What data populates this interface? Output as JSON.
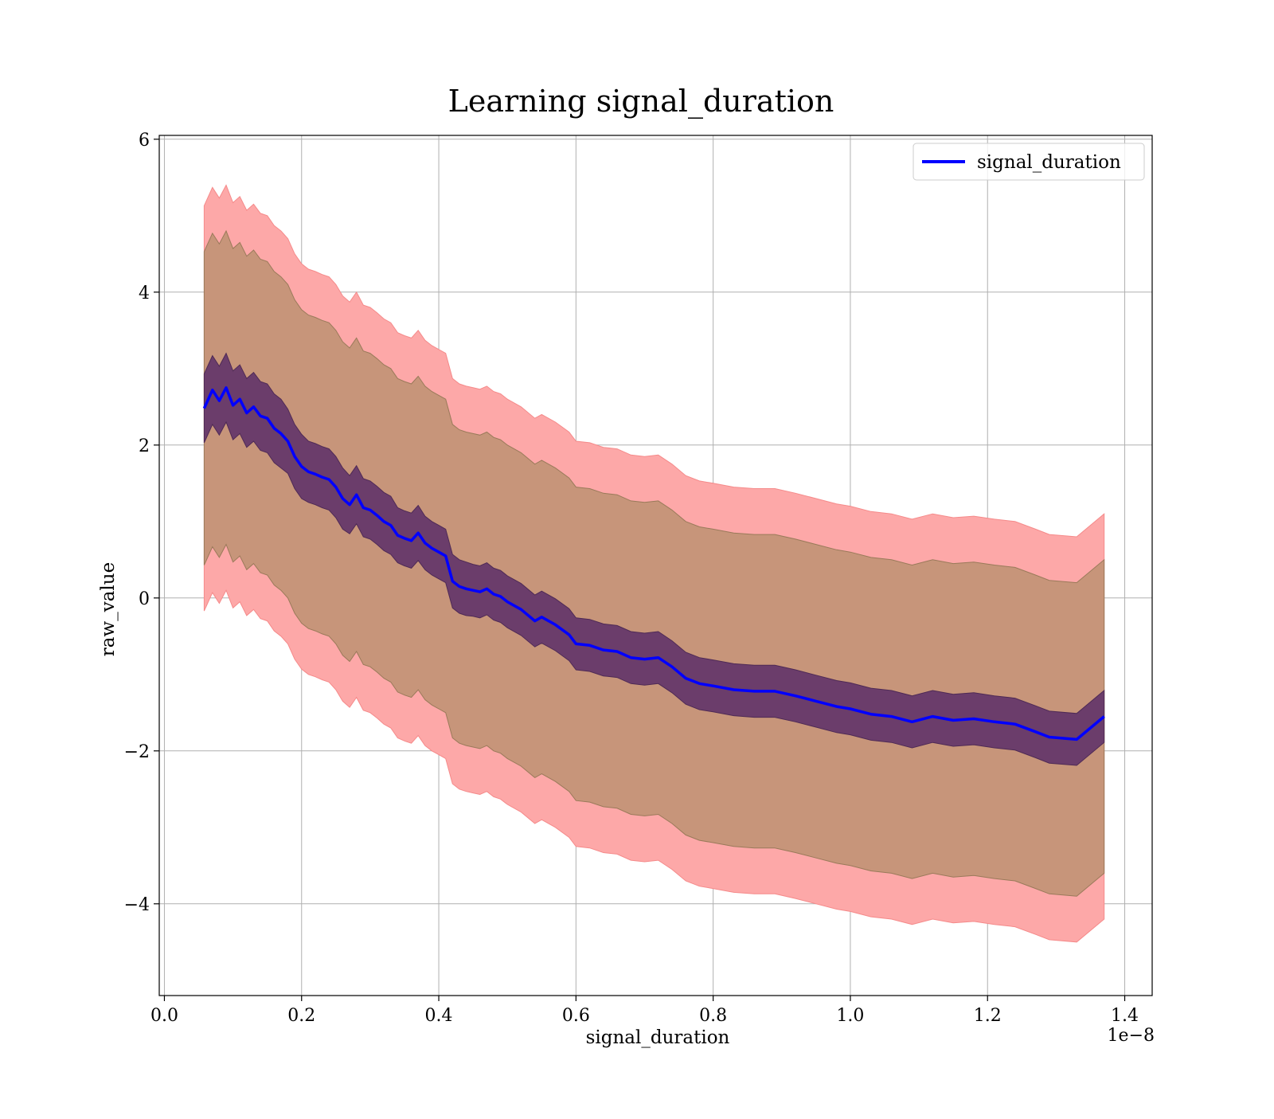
{
  "chart_data": {
    "type": "line",
    "title": "Learning signal_duration",
    "xlabel": "signal_duration",
    "ylabel": "raw_value",
    "x_offset_label": "1e−8",
    "xlim": [
      -0.0075,
      1.44
    ],
    "ylim": [
      -5.2,
      6.05
    ],
    "x_ticks": [
      0.0,
      0.2,
      0.4,
      0.6,
      0.8,
      1.0,
      1.2,
      1.4
    ],
    "x_tick_labels": [
      "0.0",
      "0.2",
      "0.4",
      "0.6",
      "0.8",
      "1.0",
      "1.2",
      "1.4"
    ],
    "y_ticks": [
      -4,
      -2,
      0,
      2,
      4,
      6
    ],
    "y_tick_labels": [
      "−4",
      "−2",
      "0",
      "2",
      "4",
      "6"
    ],
    "grid": true,
    "legend_position": "top-right",
    "series": [
      {
        "name": "signal_duration",
        "color": "#0000ff",
        "x": [
          0.058,
          0.07,
          0.08,
          0.09,
          0.1,
          0.11,
          0.12,
          0.13,
          0.14,
          0.15,
          0.16,
          0.17,
          0.18,
          0.19,
          0.2,
          0.21,
          0.22,
          0.23,
          0.24,
          0.25,
          0.26,
          0.27,
          0.28,
          0.29,
          0.3,
          0.31,
          0.32,
          0.33,
          0.34,
          0.35,
          0.36,
          0.37,
          0.38,
          0.39,
          0.4,
          0.41,
          0.42,
          0.43,
          0.44,
          0.45,
          0.46,
          0.47,
          0.48,
          0.49,
          0.5,
          0.52,
          0.54,
          0.55,
          0.57,
          0.59,
          0.6,
          0.62,
          0.64,
          0.66,
          0.68,
          0.7,
          0.72,
          0.74,
          0.76,
          0.78,
          0.8,
          0.83,
          0.86,
          0.89,
          0.92,
          0.95,
          0.98,
          1.0,
          1.03,
          1.06,
          1.09,
          1.12,
          1.15,
          1.18,
          1.21,
          1.24,
          1.27,
          1.29,
          1.33,
          1.37
        ],
        "y": [
          2.48,
          2.72,
          2.58,
          2.75,
          2.52,
          2.6,
          2.42,
          2.5,
          2.38,
          2.35,
          2.22,
          2.15,
          2.05,
          1.85,
          1.72,
          1.65,
          1.62,
          1.58,
          1.55,
          1.45,
          1.3,
          1.22,
          1.35,
          1.18,
          1.15,
          1.08,
          1.0,
          0.95,
          0.82,
          0.78,
          0.75,
          0.85,
          0.72,
          0.65,
          0.6,
          0.55,
          0.22,
          0.15,
          0.12,
          0.1,
          0.08,
          0.12,
          0.05,
          0.02,
          -0.05,
          -0.15,
          -0.3,
          -0.25,
          -0.35,
          -0.48,
          -0.6,
          -0.62,
          -0.68,
          -0.7,
          -0.78,
          -0.8,
          -0.78,
          -0.9,
          -1.05,
          -1.12,
          -1.15,
          -1.2,
          -1.22,
          -1.22,
          -1.28,
          -1.35,
          -1.42,
          -1.45,
          -1.52,
          -1.55,
          -1.62,
          -1.55,
          -1.6,
          -1.58,
          -1.62,
          -1.65,
          -1.75,
          -1.82,
          -1.85,
          -1.55
        ],
        "band_inner_halfwidth": [
          0.45,
          0.45,
          0.45,
          0.45,
          0.45,
          0.45,
          0.45,
          0.45,
          0.45,
          0.45,
          0.45,
          0.45,
          0.42,
          0.42,
          0.42,
          0.4,
          0.4,
          0.4,
          0.4,
          0.4,
          0.4,
          0.38,
          0.38,
          0.38,
          0.38,
          0.38,
          0.38,
          0.38,
          0.36,
          0.36,
          0.36,
          0.36,
          0.35,
          0.35,
          0.35,
          0.35,
          0.35,
          0.35,
          0.35,
          0.34,
          0.34,
          0.34,
          0.34,
          0.34,
          0.34,
          0.34,
          0.34,
          0.34,
          0.34,
          0.34,
          0.34,
          0.34,
          0.34,
          0.34,
          0.34,
          0.34,
          0.34,
          0.34,
          0.34,
          0.34,
          0.34,
          0.34,
          0.34,
          0.34,
          0.34,
          0.34,
          0.34,
          0.34,
          0.34,
          0.34,
          0.34,
          0.34,
          0.34,
          0.34,
          0.34,
          0.34,
          0.34,
          0.34,
          0.34,
          0.34
        ],
        "band_middle_halfwidth": [
          2.05,
          2.05,
          2.05,
          2.05,
          2.05,
          2.05,
          2.05,
          2.05,
          2.05,
          2.05,
          2.05,
          2.05,
          2.05,
          2.05,
          2.05,
          2.05,
          2.05,
          2.05,
          2.05,
          2.05,
          2.05,
          2.05,
          2.05,
          2.05,
          2.05,
          2.05,
          2.05,
          2.05,
          2.05,
          2.05,
          2.05,
          2.05,
          2.05,
          2.05,
          2.05,
          2.05,
          2.05,
          2.05,
          2.05,
          2.05,
          2.05,
          2.05,
          2.05,
          2.05,
          2.05,
          2.05,
          2.05,
          2.05,
          2.05,
          2.05,
          2.05,
          2.05,
          2.05,
          2.05,
          2.05,
          2.05,
          2.05,
          2.05,
          2.05,
          2.05,
          2.05,
          2.05,
          2.05,
          2.05,
          2.05,
          2.05,
          2.05,
          2.05,
          2.05,
          2.05,
          2.05,
          2.05,
          2.05,
          2.05,
          2.05,
          2.05,
          2.05,
          2.05,
          2.05,
          2.05
        ],
        "band_outer_halfwidth": [
          2.65,
          2.65,
          2.65,
          2.65,
          2.65,
          2.65,
          2.65,
          2.65,
          2.65,
          2.65,
          2.65,
          2.65,
          2.65,
          2.65,
          2.65,
          2.65,
          2.65,
          2.65,
          2.65,
          2.65,
          2.65,
          2.65,
          2.65,
          2.65,
          2.65,
          2.65,
          2.65,
          2.65,
          2.65,
          2.65,
          2.65,
          2.65,
          2.65,
          2.65,
          2.65,
          2.65,
          2.65,
          2.65,
          2.65,
          2.65,
          2.65,
          2.65,
          2.65,
          2.65,
          2.65,
          2.65,
          2.65,
          2.65,
          2.65,
          2.65,
          2.65,
          2.65,
          2.65,
          2.65,
          2.65,
          2.65,
          2.65,
          2.65,
          2.65,
          2.65,
          2.65,
          2.65,
          2.65,
          2.65,
          2.65,
          2.65,
          2.65,
          2.65,
          2.65,
          2.65,
          2.65,
          2.65,
          2.65,
          2.65,
          2.65,
          2.65,
          2.65,
          2.65,
          2.65,
          2.65
        ]
      }
    ],
    "colors": {
      "line": "#0000ff",
      "band_inner": "#6b3d6b",
      "band_middle": "#c7957a",
      "band_outer": "#fda8a8",
      "grid": "#b0b0b0"
    }
  }
}
